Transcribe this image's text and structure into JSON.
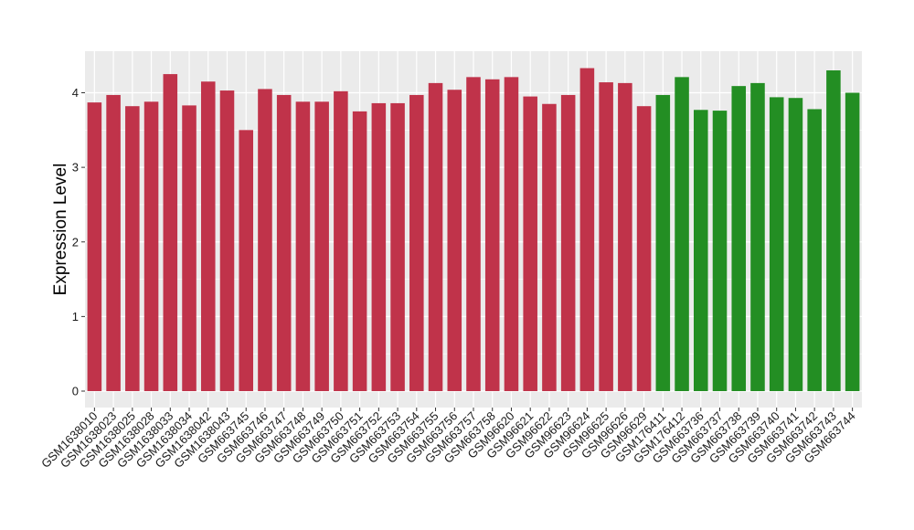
{
  "chart_data": {
    "type": "bar",
    "title": "",
    "xlabel": "",
    "ylabel": "Expression Level",
    "ylim": [
      0,
      4.5
    ],
    "y_ticks": [
      0,
      1,
      2,
      3,
      4
    ],
    "grid": true,
    "background": "#ebebeb",
    "grid_color": "#ffffff",
    "categories": [
      "GSM1638010",
      "GSM1638023",
      "GSM1638025",
      "GSM1638028",
      "GSM1638033",
      "GSM1638034",
      "GSM1638042",
      "GSM1638043",
      "GSM663745",
      "GSM663746",
      "GSM663747",
      "GSM663748",
      "GSM663749",
      "GSM663750",
      "GSM663751",
      "GSM663752",
      "GSM663753",
      "GSM663754",
      "GSM663755",
      "GSM663756",
      "GSM663757",
      "GSM663758",
      "GSM96620",
      "GSM96621",
      "GSM96622",
      "GSM96623",
      "GSM96624",
      "GSM96625",
      "GSM96626",
      "GSM96629",
      "GSM176411",
      "GSM176412",
      "GSM663736",
      "GSM663737",
      "GSM663738",
      "GSM663739",
      "GSM663740",
      "GSM663741",
      "GSM663742",
      "GSM663743",
      "GSM663744"
    ],
    "values": [
      3.87,
      3.97,
      3.82,
      3.88,
      4.25,
      3.83,
      4.15,
      4.03,
      3.5,
      4.05,
      3.97,
      3.88,
      3.88,
      4.02,
      3.75,
      3.86,
      3.86,
      3.97,
      4.13,
      4.04,
      4.21,
      4.18,
      4.21,
      3.95,
      3.85,
      3.97,
      4.33,
      4.14,
      4.13,
      3.82,
      3.97,
      4.21,
      3.77,
      3.76,
      4.09,
      4.13,
      3.94,
      3.93,
      3.78,
      4.3,
      4.0
    ],
    "colors": [
      "#c0334a",
      "#c0334a",
      "#c0334a",
      "#c0334a",
      "#c0334a",
      "#c0334a",
      "#c0334a",
      "#c0334a",
      "#c0334a",
      "#c0334a",
      "#c0334a",
      "#c0334a",
      "#c0334a",
      "#c0334a",
      "#c0334a",
      "#c0334a",
      "#c0334a",
      "#c0334a",
      "#c0334a",
      "#c0334a",
      "#c0334a",
      "#c0334a",
      "#c0334a",
      "#c0334a",
      "#c0334a",
      "#c0334a",
      "#c0334a",
      "#c0334a",
      "#c0334a",
      "#c0334a",
      "#238e23",
      "#238e23",
      "#238e23",
      "#238e23",
      "#238e23",
      "#238e23",
      "#238e23",
      "#238e23",
      "#238e23",
      "#238e23",
      "#238e23"
    ]
  }
}
